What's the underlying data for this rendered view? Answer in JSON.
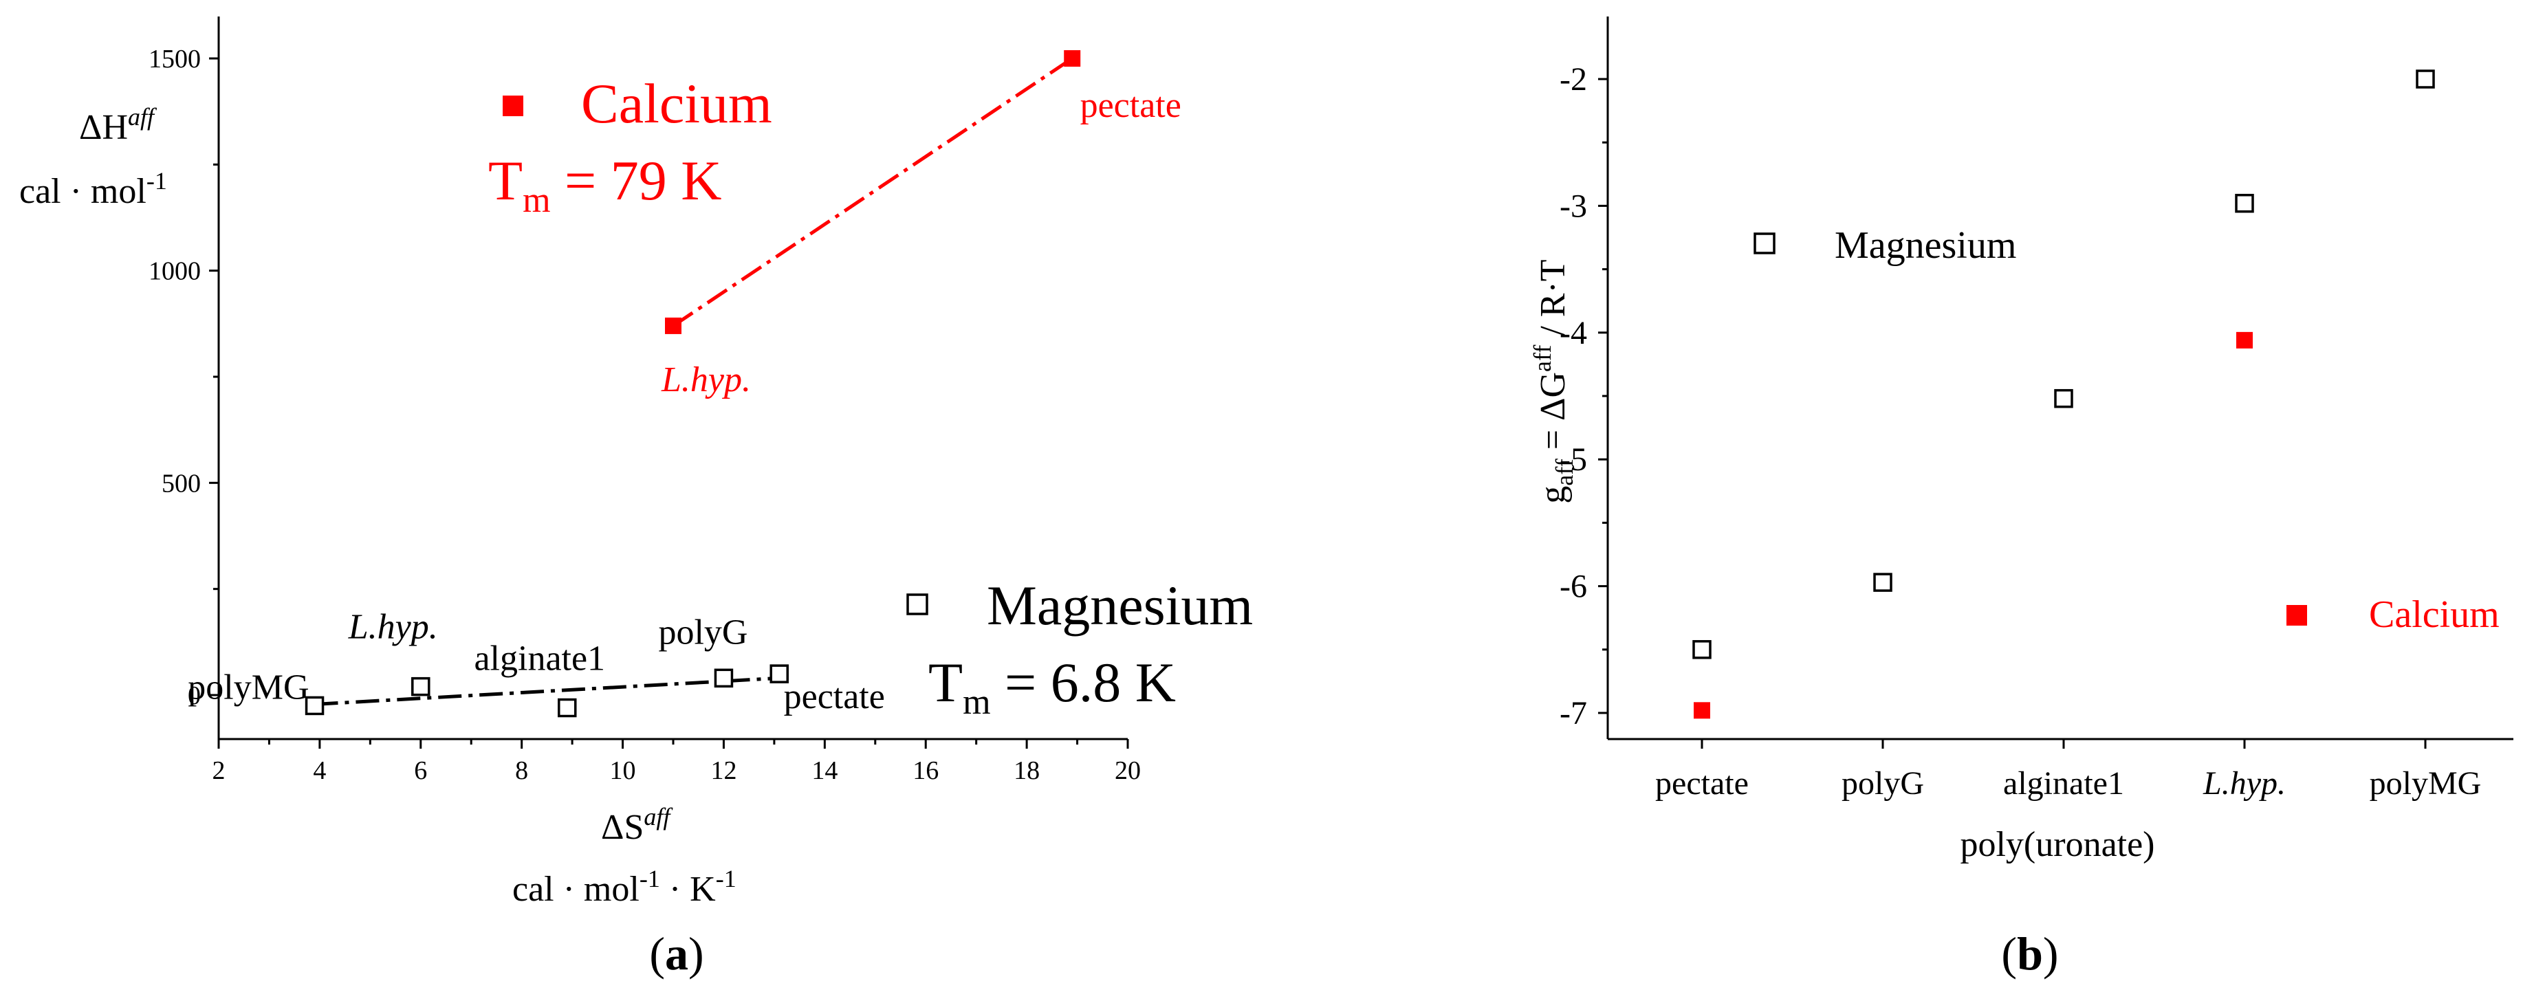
{
  "chart_data": [
    {
      "panel": "(a)",
      "type": "scatter",
      "xlabel": {
        "main": "ΔS",
        "sup": "aff",
        "units": "cal · mol",
        "units_sup1": "-1",
        "units_mid": " · K",
        "units_sup2": "-1"
      },
      "ylabel": {
        "main": "ΔH",
        "sup": "aff",
        "units": "cal · mol",
        "units_sup": "-1"
      },
      "xlim": [
        2,
        20
      ],
      "ylim": [
        -100,
        1600
      ],
      "xticks": [
        "2",
        "4",
        "6",
        "8",
        "10",
        "12",
        "14",
        "16",
        "18",
        "20"
      ],
      "yticks": [
        "0",
        "500",
        "1000",
        "1500"
      ],
      "series": [
        {
          "name": "Calcium",
          "color": "#ff0000",
          "marker": "filled-square",
          "tm_label": {
            "main": "T",
            "sub": "m",
            "rest": " = 79 K"
          },
          "fit_line": "dash-dot",
          "points": [
            {
              "x": 11.0,
              "y": 870,
              "label": "L.hyp."
            },
            {
              "x": 18.9,
              "y": 1500,
              "label": "pectate"
            }
          ]
        },
        {
          "name": "Magnesium",
          "color": "#000000",
          "marker": "open-square",
          "tm_label": {
            "main": "T",
            "sub": "m",
            "rest": " = 6.8 K"
          },
          "fit_line": "dash-dot",
          "points": [
            {
              "x": 3.9,
              "y": -25,
              "label": "polyMG"
            },
            {
              "x": 6.0,
              "y": 20,
              "label": "L.hyp."
            },
            {
              "x": 8.9,
              "y": -30,
              "label": "alginate1"
            },
            {
              "x": 12.0,
              "y": 40,
              "label": "polyG"
            },
            {
              "x": 13.1,
              "y": 50,
              "label": "pectate"
            }
          ]
        }
      ],
      "legend_placement": "inside"
    },
    {
      "panel": "(b)",
      "type": "scatter",
      "xlabel": "poly(uronate)",
      "ylabel": {
        "g": "g",
        "g_sub": "aff",
        "eq": " = ΔG",
        "eq_sup": "aff",
        "rest": " / R·T"
      },
      "categories": [
        "pectate",
        "polyG",
        "alginate1",
        "L.hyp.",
        "polyMG"
      ],
      "ylim": [
        -7.2,
        -1.6
      ],
      "yticks": [
        "-7",
        "-6",
        "-5",
        "-4",
        "-3",
        "-2"
      ],
      "series": [
        {
          "name": "Magnesium",
          "color": "#000000",
          "marker": "open-square",
          "values": [
            -6.5,
            -5.97,
            -4.52,
            -2.98,
            -2.0
          ]
        },
        {
          "name": "Calcium",
          "color": "#ff0000",
          "marker": "filled-square",
          "values": [
            -6.98,
            null,
            null,
            -4.06,
            null
          ]
        }
      ],
      "legend_placement": "inside-right"
    }
  ]
}
